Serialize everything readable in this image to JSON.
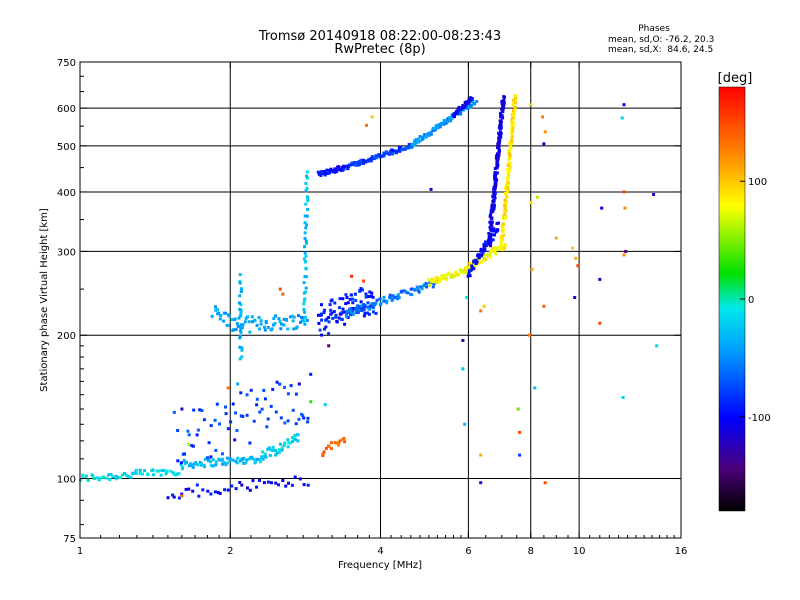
{
  "title_line1": "Tromsø 20140918 08:22:00-08:23:43",
  "title_line2": "RwPretec (8p)",
  "stats": {
    "heading": "Phases",
    "line_o": "mean, sd,O: -76.2, 20.3",
    "line_x": "mean, sd,X:  84.6, 24.5"
  },
  "colorbar": {
    "unit_label": "[deg]",
    "min": -180,
    "max": 180,
    "tick_values": [
      100,
      0,
      -100
    ],
    "tick_labels": [
      "100",
      "0",
      "-100"
    ]
  },
  "chart_data": {
    "type": "scatter",
    "title": "Tromsø 20140918 08:22:00-08:23:43",
    "subtitle": "RwPretec (8p)",
    "xlabel": "Frequency [MHz]",
    "ylabel": "Stationary phase Virtual Height [km]",
    "x_scale": "log2",
    "y_scale": "log",
    "xlim": [
      1,
      16
    ],
    "ylim": [
      75,
      750
    ],
    "xtick_values": [
      1,
      2,
      4,
      6,
      8,
      10,
      16
    ],
    "xtick_labels": [
      "1",
      "2",
      "4",
      "6",
      "8",
      "10",
      "16"
    ],
    "ytick_values": [
      75,
      100,
      200,
      300,
      400,
      500,
      600,
      750
    ],
    "ytick_labels": [
      "75",
      "100",
      "200",
      "300",
      "400",
      "500",
      "600",
      "750"
    ],
    "grid_x": [
      2,
      4,
      6,
      8,
      10
    ],
    "grid_y": [
      100,
      200,
      300,
      400,
      500,
      600
    ],
    "color_variable": "phase [deg]",
    "point_traces": [
      {
        "x_start": 1.0,
        "x_end": 1.28,
        "h_start": 100,
        "h_end": 102,
        "phase": -15,
        "count": 30,
        "spread": 2
      },
      {
        "x_start": 1.28,
        "x_end": 1.6,
        "h_start": 102,
        "h_end": 104,
        "phase": -20,
        "count": 26,
        "spread": 2
      },
      {
        "x_start": 1.6,
        "x_end": 2.3,
        "h_start": 107,
        "h_end": 110,
        "phase": -35,
        "count": 60,
        "spread": 2
      },
      {
        "x_start": 2.3,
        "x_end": 2.75,
        "h_start": 111,
        "h_end": 122,
        "phase": -20,
        "count": 36,
        "spread": 3
      },
      {
        "x_start": 3.05,
        "x_end": 3.4,
        "h_start": 113,
        "h_end": 122,
        "phase": 140,
        "count": 16,
        "spread": 2
      },
      {
        "x_start": 1.85,
        "x_end": 2.05,
        "h_start": 225,
        "h_end": 210,
        "phase": -40,
        "count": 20,
        "spread": 8
      },
      {
        "x_start": 2.05,
        "x_end": 2.85,
        "h_start": 210,
        "h_end": 215,
        "phase": -45,
        "count": 55,
        "spread": 8
      },
      {
        "x_start": 2.1,
        "x_end": 2.1,
        "h_start": 180,
        "h_end": 265,
        "phase": -30,
        "count": 26,
        "spread": 4
      },
      {
        "x_start": 2.82,
        "x_end": 2.85,
        "h_start": 215,
        "h_end": 440,
        "phase": -30,
        "count": 40,
        "spread": 4
      },
      {
        "x_start": 3.0,
        "x_end": 3.9,
        "h_start": 215,
        "h_end": 240,
        "phase": -90,
        "count": 90,
        "spread": 18
      },
      {
        "x_start": 3.4,
        "x_end": 5.2,
        "h_start": 222,
        "h_end": 258,
        "phase": -60,
        "count": 80,
        "spread": 4
      },
      {
        "x_start": 5.0,
        "x_end": 6.0,
        "h_start": 258,
        "h_end": 275,
        "phase": 80,
        "count": 45,
        "spread": 4
      },
      {
        "x_start": 5.9,
        "x_end": 7.1,
        "h_start": 275,
        "h_end": 310,
        "phase": 80,
        "count": 55,
        "spread": 5
      },
      {
        "x_start": 7.0,
        "x_end": 7.45,
        "h_start": 310,
        "h_end": 640,
        "phase": 90,
        "count": 110,
        "spread": 5
      },
      {
        "x_start": 6.0,
        "x_end": 6.9,
        "h_start": 270,
        "h_end": 340,
        "phase": -100,
        "count": 60,
        "spread": 6
      },
      {
        "x_start": 6.6,
        "x_end": 7.05,
        "h_start": 310,
        "h_end": 630,
        "phase": -110,
        "count": 170,
        "spread": 7
      },
      {
        "x_start": 3.0,
        "x_end": 3.5,
        "h_start": 435,
        "h_end": 455,
        "phase": -95,
        "count": 45,
        "spread": 5
      },
      {
        "x_start": 3.5,
        "x_end": 4.6,
        "h_start": 455,
        "h_end": 500,
        "phase": -80,
        "count": 70,
        "spread": 5
      },
      {
        "x_start": 4.6,
        "x_end": 6.2,
        "h_start": 500,
        "h_end": 620,
        "phase": -50,
        "count": 90,
        "spread": 6
      },
      {
        "x_start": 5.6,
        "x_end": 6.1,
        "h_start": 580,
        "h_end": 630,
        "phase": -105,
        "count": 40,
        "spread": 5
      },
      {
        "x_start": 1.55,
        "x_end": 2.9,
        "h_start": 120,
        "h_end": 150,
        "phase": -80,
        "count": 70,
        "spread": 18
      },
      {
        "x_start": 1.5,
        "x_end": 2.85,
        "h_start": 93,
        "h_end": 99,
        "phase": -100,
        "count": 40,
        "spread": 3
      }
    ],
    "isolated_points": [
      {
        "x": 2.52,
        "h": 250,
        "phase": 150
      },
      {
        "x": 2.55,
        "h": 244,
        "phase": 140
      },
      {
        "x": 3.5,
        "h": 266,
        "phase": 160
      },
      {
        "x": 3.7,
        "h": 260,
        "phase": 150
      },
      {
        "x": 3.15,
        "h": 190,
        "phase": -150
      },
      {
        "x": 3.75,
        "h": 552,
        "phase": 130
      },
      {
        "x": 3.85,
        "h": 575,
        "phase": 100
      },
      {
        "x": 5.05,
        "h": 405,
        "phase": -120
      },
      {
        "x": 5.85,
        "h": 195,
        "phase": -140
      },
      {
        "x": 5.85,
        "h": 170,
        "phase": -30
      },
      {
        "x": 5.9,
        "h": 130,
        "phase": -30
      },
      {
        "x": 5.95,
        "h": 240,
        "phase": -10
      },
      {
        "x": 6.35,
        "h": 225,
        "phase": 130
      },
      {
        "x": 6.45,
        "h": 230,
        "phase": 100
      },
      {
        "x": 6.35,
        "h": 112,
        "phase": 110
      },
      {
        "x": 6.35,
        "h": 98,
        "phase": -120
      },
      {
        "x": 7.55,
        "h": 140,
        "phase": 40
      },
      {
        "x": 7.6,
        "h": 125,
        "phase": 150
      },
      {
        "x": 7.6,
        "h": 112,
        "phase": -80
      },
      {
        "x": 7.95,
        "h": 200,
        "phase": 130
      },
      {
        "x": 8.0,
        "h": 380,
        "phase": 90
      },
      {
        "x": 8.05,
        "h": 275,
        "phase": 110
      },
      {
        "x": 8.0,
        "h": 610,
        "phase": 60
      },
      {
        "x": 8.15,
        "h": 155,
        "phase": -30
      },
      {
        "x": 8.25,
        "h": 390,
        "phase": 60
      },
      {
        "x": 8.45,
        "h": 575,
        "phase": 130
      },
      {
        "x": 8.55,
        "h": 535,
        "phase": 120
      },
      {
        "x": 8.5,
        "h": 505,
        "phase": -120
      },
      {
        "x": 8.55,
        "h": 98,
        "phase": 150
      },
      {
        "x": 8.5,
        "h": 230,
        "phase": 140
      },
      {
        "x": 9.0,
        "h": 320,
        "phase": 110
      },
      {
        "x": 9.85,
        "h": 290,
        "phase": 110
      },
      {
        "x": 9.95,
        "h": 280,
        "phase": 160
      },
      {
        "x": 9.8,
        "h": 240,
        "phase": -120
      },
      {
        "x": 9.7,
        "h": 305,
        "phase": 100
      },
      {
        "x": 11.1,
        "h": 370,
        "phase": -110
      },
      {
        "x": 11.0,
        "h": 262,
        "phase": -120
      },
      {
        "x": 11.0,
        "h": 212,
        "phase": 150
      },
      {
        "x": 12.3,
        "h": 610,
        "phase": -100
      },
      {
        "x": 12.2,
        "h": 572,
        "phase": -20
      },
      {
        "x": 12.3,
        "h": 400,
        "phase": 150
      },
      {
        "x": 12.35,
        "h": 370,
        "phase": 120
      },
      {
        "x": 12.4,
        "h": 300,
        "phase": -150
      },
      {
        "x": 12.3,
        "h": 295,
        "phase": 120
      },
      {
        "x": 12.25,
        "h": 148,
        "phase": -20
      },
      {
        "x": 14.1,
        "h": 395,
        "phase": -120
      },
      {
        "x": 14.3,
        "h": 190,
        "phase": -20
      },
      {
        "x": 1.6,
        "h": 140,
        "phase": -120
      },
      {
        "x": 1.65,
        "h": 118,
        "phase": 60
      },
      {
        "x": 1.98,
        "h": 155,
        "phase": 130
      },
      {
        "x": 2.07,
        "h": 158,
        "phase": -40
      },
      {
        "x": 2.75,
        "h": 158,
        "phase": -110
      },
      {
        "x": 2.9,
        "h": 145,
        "phase": 30
      },
      {
        "x": 3.1,
        "h": 143,
        "phase": -20
      },
      {
        "x": 1.6,
        "h": 92,
        "phase": 140
      }
    ]
  }
}
